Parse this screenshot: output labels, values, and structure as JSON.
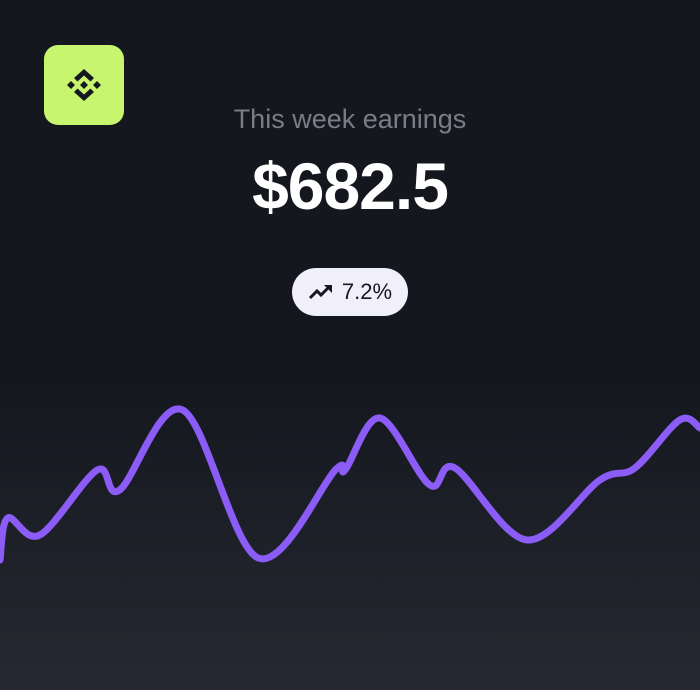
{
  "logo": {
    "icon": "binance-diamond-icon",
    "color": "#c8f56e"
  },
  "header": {
    "label": "This week earnings",
    "amount": "$682.5"
  },
  "badge": {
    "icon": "trending-up-icon",
    "value": "7.2%"
  },
  "colors": {
    "line": "#8b5cf6",
    "background": "#14171e"
  },
  "chart_data": {
    "type": "line",
    "title": "",
    "xlabel": "",
    "ylabel": "",
    "axes": "hidden",
    "grid": false,
    "x": [
      0,
      1.1,
      5.7,
      13.9,
      17.1,
      26.1,
      36.9,
      47.9,
      49.3,
      54.3,
      61.4,
      65,
      75.3,
      85.7,
      90.7,
      97.1,
      100
    ],
    "values": [
      40,
      82,
      65,
      130,
      110,
      190,
      42,
      130,
      130,
      182,
      115,
      132,
      60,
      120,
      132,
      180,
      172
    ],
    "ylim": [
      0,
      220
    ]
  }
}
